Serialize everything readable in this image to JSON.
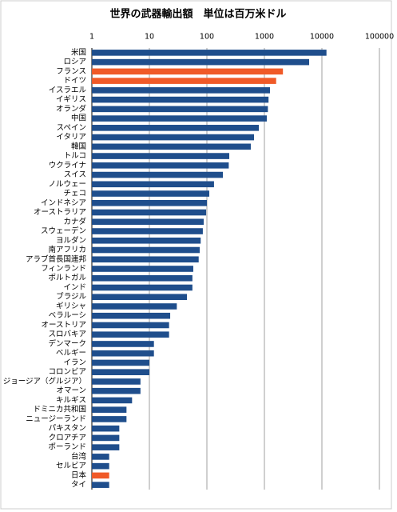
{
  "chart_data": {
    "type": "bar",
    "orientation": "horizontal",
    "title": "世界の武器輸出額　単位は百万米ドル",
    "categories": [
      "米国",
      "ロシア",
      "フランス",
      "ドイツ",
      "イスラエル",
      "イギリス",
      "オランダ",
      "中国",
      "スペイン",
      "イタリア",
      "韓国",
      "トルコ",
      "ウクライナ",
      "スイス",
      "ノルウェー",
      "チェコ",
      "インドネシア",
      "オーストラリア",
      "カナダ",
      "スウェーデン",
      "ヨルダン",
      "南アフリカ",
      "アラブ首長国連邦",
      "フィンランド",
      "ポルトガル",
      "インド",
      "ブラジル",
      "ギリシャ",
      "ベラルーシ",
      "オーストリア",
      "スロバキア",
      "デンマーク",
      "ベルギー",
      "イラン",
      "コロンビア",
      "ジョージア（グルジア）",
      "オマーン",
      "キルギス",
      "ドミニカ共和国",
      "ニュージーランド",
      "パキスタン",
      "クロアチア",
      "ポーランド",
      "台湾",
      "セルビア",
      "日本",
      "タイ"
    ],
    "values": [
      12000,
      6000,
      2100,
      1600,
      1250,
      1180,
      1150,
      1100,
      800,
      660,
      580,
      245,
      240,
      190,
      133,
      110,
      100,
      97,
      88,
      85,
      78,
      75,
      72,
      58,
      56,
      56,
      45,
      30,
      23,
      22,
      22,
      12,
      12,
      10,
      10,
      7,
      7,
      5,
      4,
      4,
      3,
      3,
      3,
      2,
      2,
      2,
      2
    ],
    "colors": [
      "#1f4e8c",
      "#1f4e8c",
      "#f05a28",
      "#f05a28",
      "#1f4e8c",
      "#1f4e8c",
      "#1f4e8c",
      "#1f4e8c",
      "#1f4e8c",
      "#1f4e8c",
      "#1f4e8c",
      "#1f4e8c",
      "#1f4e8c",
      "#1f4e8c",
      "#1f4e8c",
      "#1f4e8c",
      "#1f4e8c",
      "#1f4e8c",
      "#1f4e8c",
      "#1f4e8c",
      "#1f4e8c",
      "#1f4e8c",
      "#1f4e8c",
      "#1f4e8c",
      "#1f4e8c",
      "#1f4e8c",
      "#1f4e8c",
      "#1f4e8c",
      "#1f4e8c",
      "#1f4e8c",
      "#1f4e8c",
      "#1f4e8c",
      "#1f4e8c",
      "#1f4e8c",
      "#1f4e8c",
      "#1f4e8c",
      "#1f4e8c",
      "#1f4e8c",
      "#1f4e8c",
      "#1f4e8c",
      "#1f4e8c",
      "#1f4e8c",
      "#1f4e8c",
      "#1f4e8c",
      "#1f4e8c",
      "#f05a28",
      "#1f4e8c"
    ],
    "xscale": "log",
    "xlim": [
      1,
      100000
    ],
    "xticks": [
      1,
      10,
      100,
      1000,
      10000,
      100000
    ],
    "grid": true
  }
}
